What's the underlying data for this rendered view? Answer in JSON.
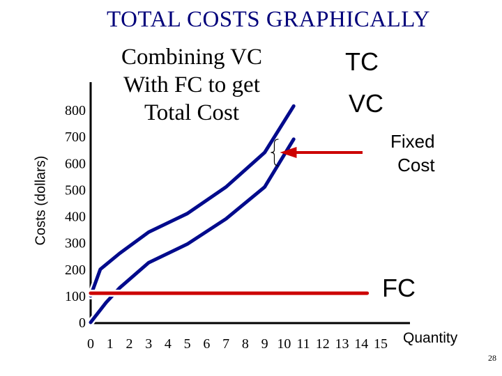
{
  "slide": {
    "title": "TOTAL COSTS GRAPHICALLY",
    "subtitle_lines": [
      "Combining VC",
      "With FC to get",
      "Total Cost"
    ],
    "page_number": "28"
  },
  "chart_data": {
    "type": "line",
    "xlabel": "Quantity",
    "ylabel": "Costs (dollars)",
    "xlim": [
      0,
      15
    ],
    "ylim": [
      0,
      800
    ],
    "x_ticks": [
      0,
      1,
      2,
      3,
      4,
      5,
      6,
      7,
      8,
      9,
      10,
      11,
      12,
      13,
      14,
      15
    ],
    "y_ticks": [
      0,
      100,
      200,
      300,
      400,
      500,
      600,
      700,
      800
    ],
    "grid": false,
    "series": [
      {
        "name": "TC",
        "color": "#000a8c",
        "x": [
          0,
          0.5,
          1.5,
          3,
          5,
          7,
          9,
          10.5
        ],
        "y": [
          100,
          200,
          260,
          340,
          410,
          510,
          640,
          815
        ]
      },
      {
        "name": "VC",
        "color": "#000a8c",
        "x": [
          0,
          0.8,
          1.5,
          3,
          5,
          7,
          9,
          10.5
        ],
        "y": [
          0,
          75,
          130,
          225,
          295,
          390,
          510,
          690
        ]
      },
      {
        "name": "FC",
        "color": "#cc0000",
        "x": [
          0,
          14.3
        ],
        "y": [
          110,
          110
        ]
      }
    ],
    "annotations": {
      "tc_label": "TC",
      "vc_label": "VC",
      "fixed_cost_lines": [
        "Fixed",
        "Cost"
      ],
      "fc_label": "FC",
      "arrow_color": "#cc0000",
      "brace_at_x": 9.5,
      "brace_y_range": [
        590,
        690
      ]
    }
  }
}
